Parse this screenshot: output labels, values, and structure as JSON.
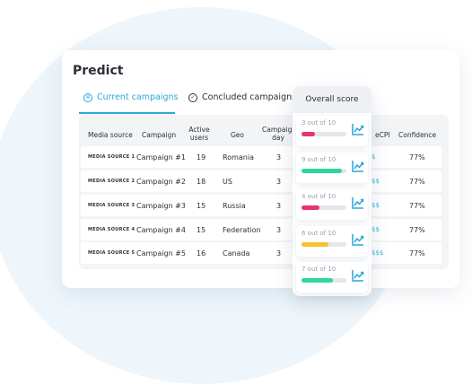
{
  "title": "Predict",
  "tabs": [
    {
      "label": "Current campaigns",
      "icon": "gear-icon",
      "active": true
    },
    {
      "label": "Concluded campaigns",
      "icon": "check-circle-icon",
      "active": false
    }
  ],
  "table": {
    "headers": {
      "media_source": "Media source",
      "campaign": "Campaign",
      "active_users_1": "Active",
      "active_users_2": "users",
      "geo": "Geo",
      "campaign_day_1": "Campaign",
      "campaign_day_2": "day",
      "ecpi": "eCPI",
      "confidence": "Confidence"
    },
    "rows": [
      {
        "source": "MEDIA SOURCE 1",
        "campaign": "Campaign #1",
        "users": "19",
        "geo": "Romania",
        "day": "3",
        "ecpi": "$",
        "confidence": "77%"
      },
      {
        "source": "MEDIA SOURCE 2",
        "campaign": "Campaign #2",
        "users": "18",
        "geo": "US",
        "day": "3",
        "ecpi": "$$",
        "confidence": "77%"
      },
      {
        "source": "MEDIA SOURCE 3",
        "campaign": "Campaign #3",
        "users": "15",
        "geo": "Russia",
        "day": "3",
        "ecpi": "$$",
        "confidence": "77%"
      },
      {
        "source": "MEDIA SOURCE 4",
        "campaign": "Campaign #4",
        "users": "15",
        "geo": "Federation",
        "day": "3",
        "ecpi": "$$",
        "confidence": "77%"
      },
      {
        "source": "MEDIA SOURCE 5",
        "campaign": "Campaign #5",
        "users": "16",
        "geo": "Canada",
        "day": "3",
        "ecpi": "$$$",
        "confidence": "77%"
      }
    ]
  },
  "overall_score": {
    "label": "Overall score",
    "items": [
      {
        "text": "3 out of 10",
        "value": 3,
        "color": "#e8336b"
      },
      {
        "text": "9 out of 10",
        "value": 9,
        "color": "#2fd6a0"
      },
      {
        "text": "4 out of 10",
        "value": 4,
        "color": "#e8336b"
      },
      {
        "text": "6 out of 10",
        "value": 6,
        "color": "#f2c230"
      },
      {
        "text": "7 out of 10",
        "value": 7,
        "color": "#2fd6a0"
      }
    ]
  },
  "colors": {
    "accent": "#2aa7d8",
    "trend_icon": "#2aa7d8"
  }
}
